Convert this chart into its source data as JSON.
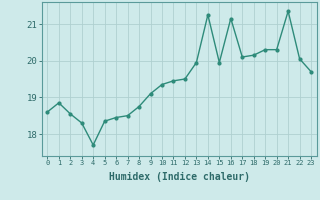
{
  "x": [
    0,
    1,
    2,
    3,
    4,
    5,
    6,
    7,
    8,
    9,
    10,
    11,
    12,
    13,
    14,
    15,
    16,
    17,
    18,
    19,
    20,
    21,
    22,
    23
  ],
  "y": [
    18.6,
    18.85,
    18.55,
    18.3,
    17.7,
    18.35,
    18.45,
    18.5,
    18.75,
    19.1,
    19.35,
    19.45,
    19.5,
    19.95,
    21.25,
    19.95,
    21.15,
    20.1,
    20.15,
    20.3,
    20.3,
    21.35,
    20.05,
    19.7
  ],
  "line_color": "#2e8b7a",
  "marker": "o",
  "marker_size": 2,
  "bg_color": "#ceeaea",
  "grid_color": "#afd0d0",
  "axis_label_color": "#2e6b6a",
  "tick_color": "#2e6b6a",
  "xlabel": "Humidex (Indice chaleur)",
  "ylim": [
    17.4,
    21.6
  ],
  "yticks": [
    18,
    19,
    20,
    21
  ],
  "xticks": [
    0,
    1,
    2,
    3,
    4,
    5,
    6,
    7,
    8,
    9,
    10,
    11,
    12,
    13,
    14,
    15,
    16,
    17,
    18,
    19,
    20,
    21,
    22,
    23
  ],
  "line_width": 1.0,
  "spine_color": "#5a9a9a"
}
